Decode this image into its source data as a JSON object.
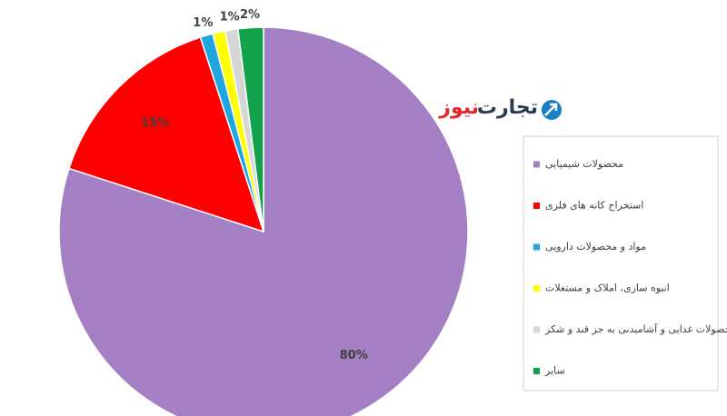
{
  "chart_data": {
    "type": "pie",
    "categories": [
      "محصولات شیمیایی",
      "استخراج کانه های فلزی",
      "مواد و محصولات دارویی",
      "انبوه سازی، املاک و مستغلات",
      "محصولات غذایی و آشامیدنی به جز قند و شکر",
      "سایر"
    ],
    "values": [
      80,
      15,
      1,
      1,
      1,
      2
    ],
    "value_labels": [
      "80%",
      "15%",
      "1%",
      null,
      "1%",
      "2%"
    ],
    "colors": [
      "#a47fc4",
      "#ff0000",
      "#1fa6e0",
      "#ffff00",
      "#d6d6d6",
      "#13a24b"
    ],
    "legend": "right"
  },
  "brand": {
    "first": "تجارت",
    "second": "نیوز"
  }
}
